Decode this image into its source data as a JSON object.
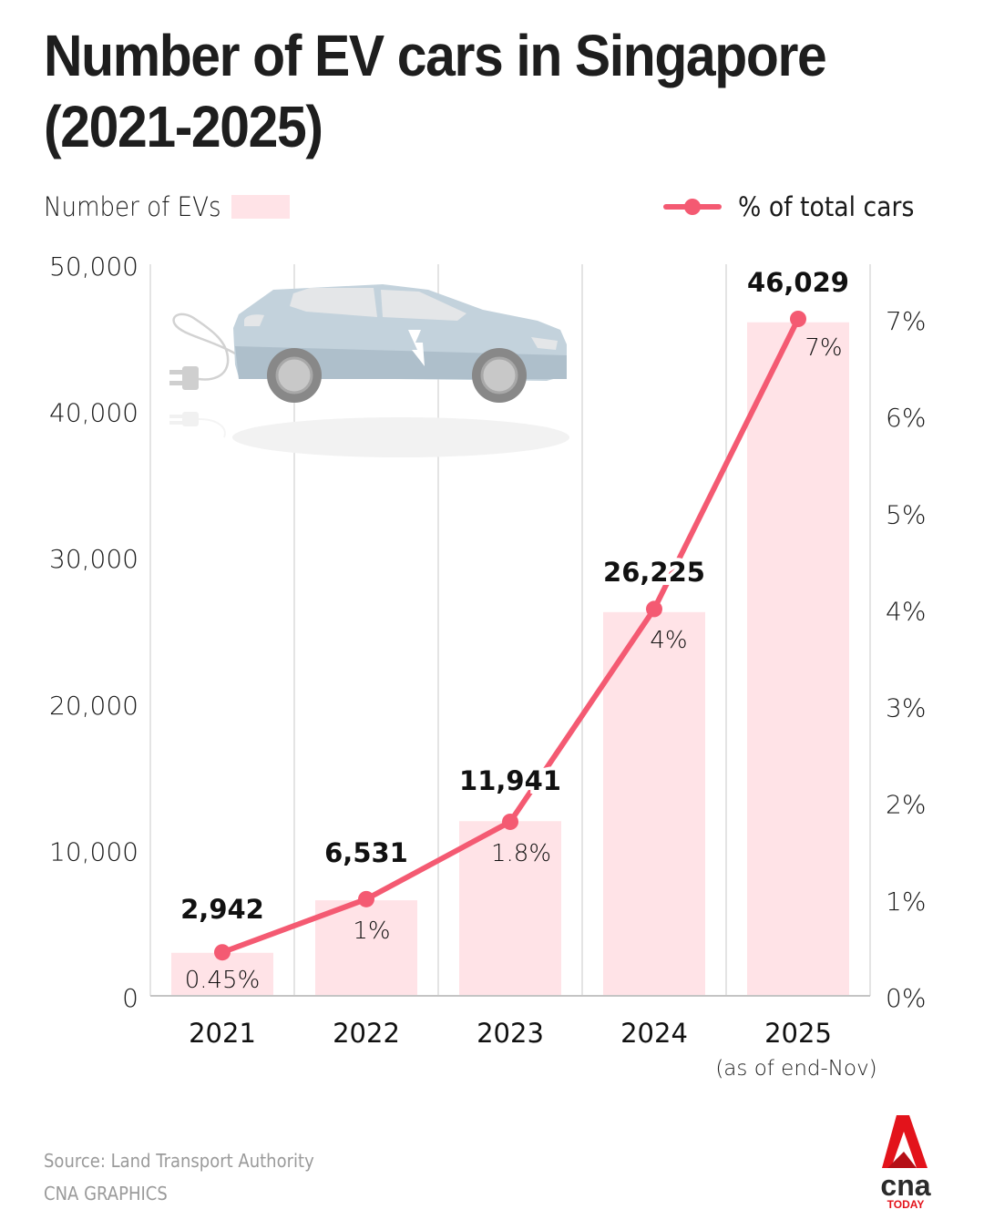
{
  "title": "Number of EV cars in Singapore (2021-2025)",
  "legend": {
    "bars_label": "Number of EVs",
    "line_label": "% of total cars"
  },
  "colors": {
    "bar": "#ffe3e7",
    "line": "#f45a72",
    "grid": "#dcdcdc",
    "axis": "#c4c4c4",
    "text": "#111111",
    "footer_text": "#9a9a9a",
    "logo_red": "#e3131b",
    "logo_dark": "#2b2b2b"
  },
  "footer": {
    "source": "Source: Land Transport Authority",
    "credit": "CNA GRAPHICS"
  },
  "logo": {
    "wordmark": "cna",
    "sub": "TODAY"
  },
  "illustration": "electric-car-with-plug",
  "chart_data": {
    "type": "bar",
    "title": "Number of EV cars in Singapore (2021-2025)",
    "xlabel": "",
    "ylabel": "Number of EVs",
    "y2label": "% of total cars",
    "categories": [
      "2021",
      "2022",
      "2023",
      "2024",
      "2025"
    ],
    "category_notes": [
      "",
      "",
      "",
      "",
      "(as of end-Nov)"
    ],
    "series": [
      {
        "name": "Number of EVs",
        "type": "bar",
        "axis": "left",
        "values": [
          2942,
          6531,
          11941,
          26225,
          46029
        ],
        "labels": [
          "2,942",
          "6,531",
          "11,941",
          "26,225",
          "46,029"
        ]
      },
      {
        "name": "% of total cars",
        "type": "line",
        "axis": "right",
        "values": [
          0.45,
          1,
          1.8,
          4,
          7
        ],
        "labels": [
          "0.45%",
          "1%",
          "1.8%",
          "4%",
          "7%"
        ]
      }
    ],
    "ylim": [
      0,
      50000
    ],
    "y2lim": [
      0,
      7.5
    ],
    "yticks": [
      0,
      10000,
      20000,
      30000,
      40000,
      50000
    ],
    "ytick_labels": [
      "0",
      "10,000",
      "20,000",
      "30,000",
      "40,000",
      "50,000"
    ],
    "y2ticks": [
      0,
      1,
      2,
      3,
      4,
      5,
      6,
      7
    ],
    "y2tick_labels": [
      "0%",
      "1%",
      "2%",
      "3%",
      "4%",
      "5%",
      "6%",
      "7%"
    ],
    "grid": "vertical",
    "legend": "top"
  }
}
